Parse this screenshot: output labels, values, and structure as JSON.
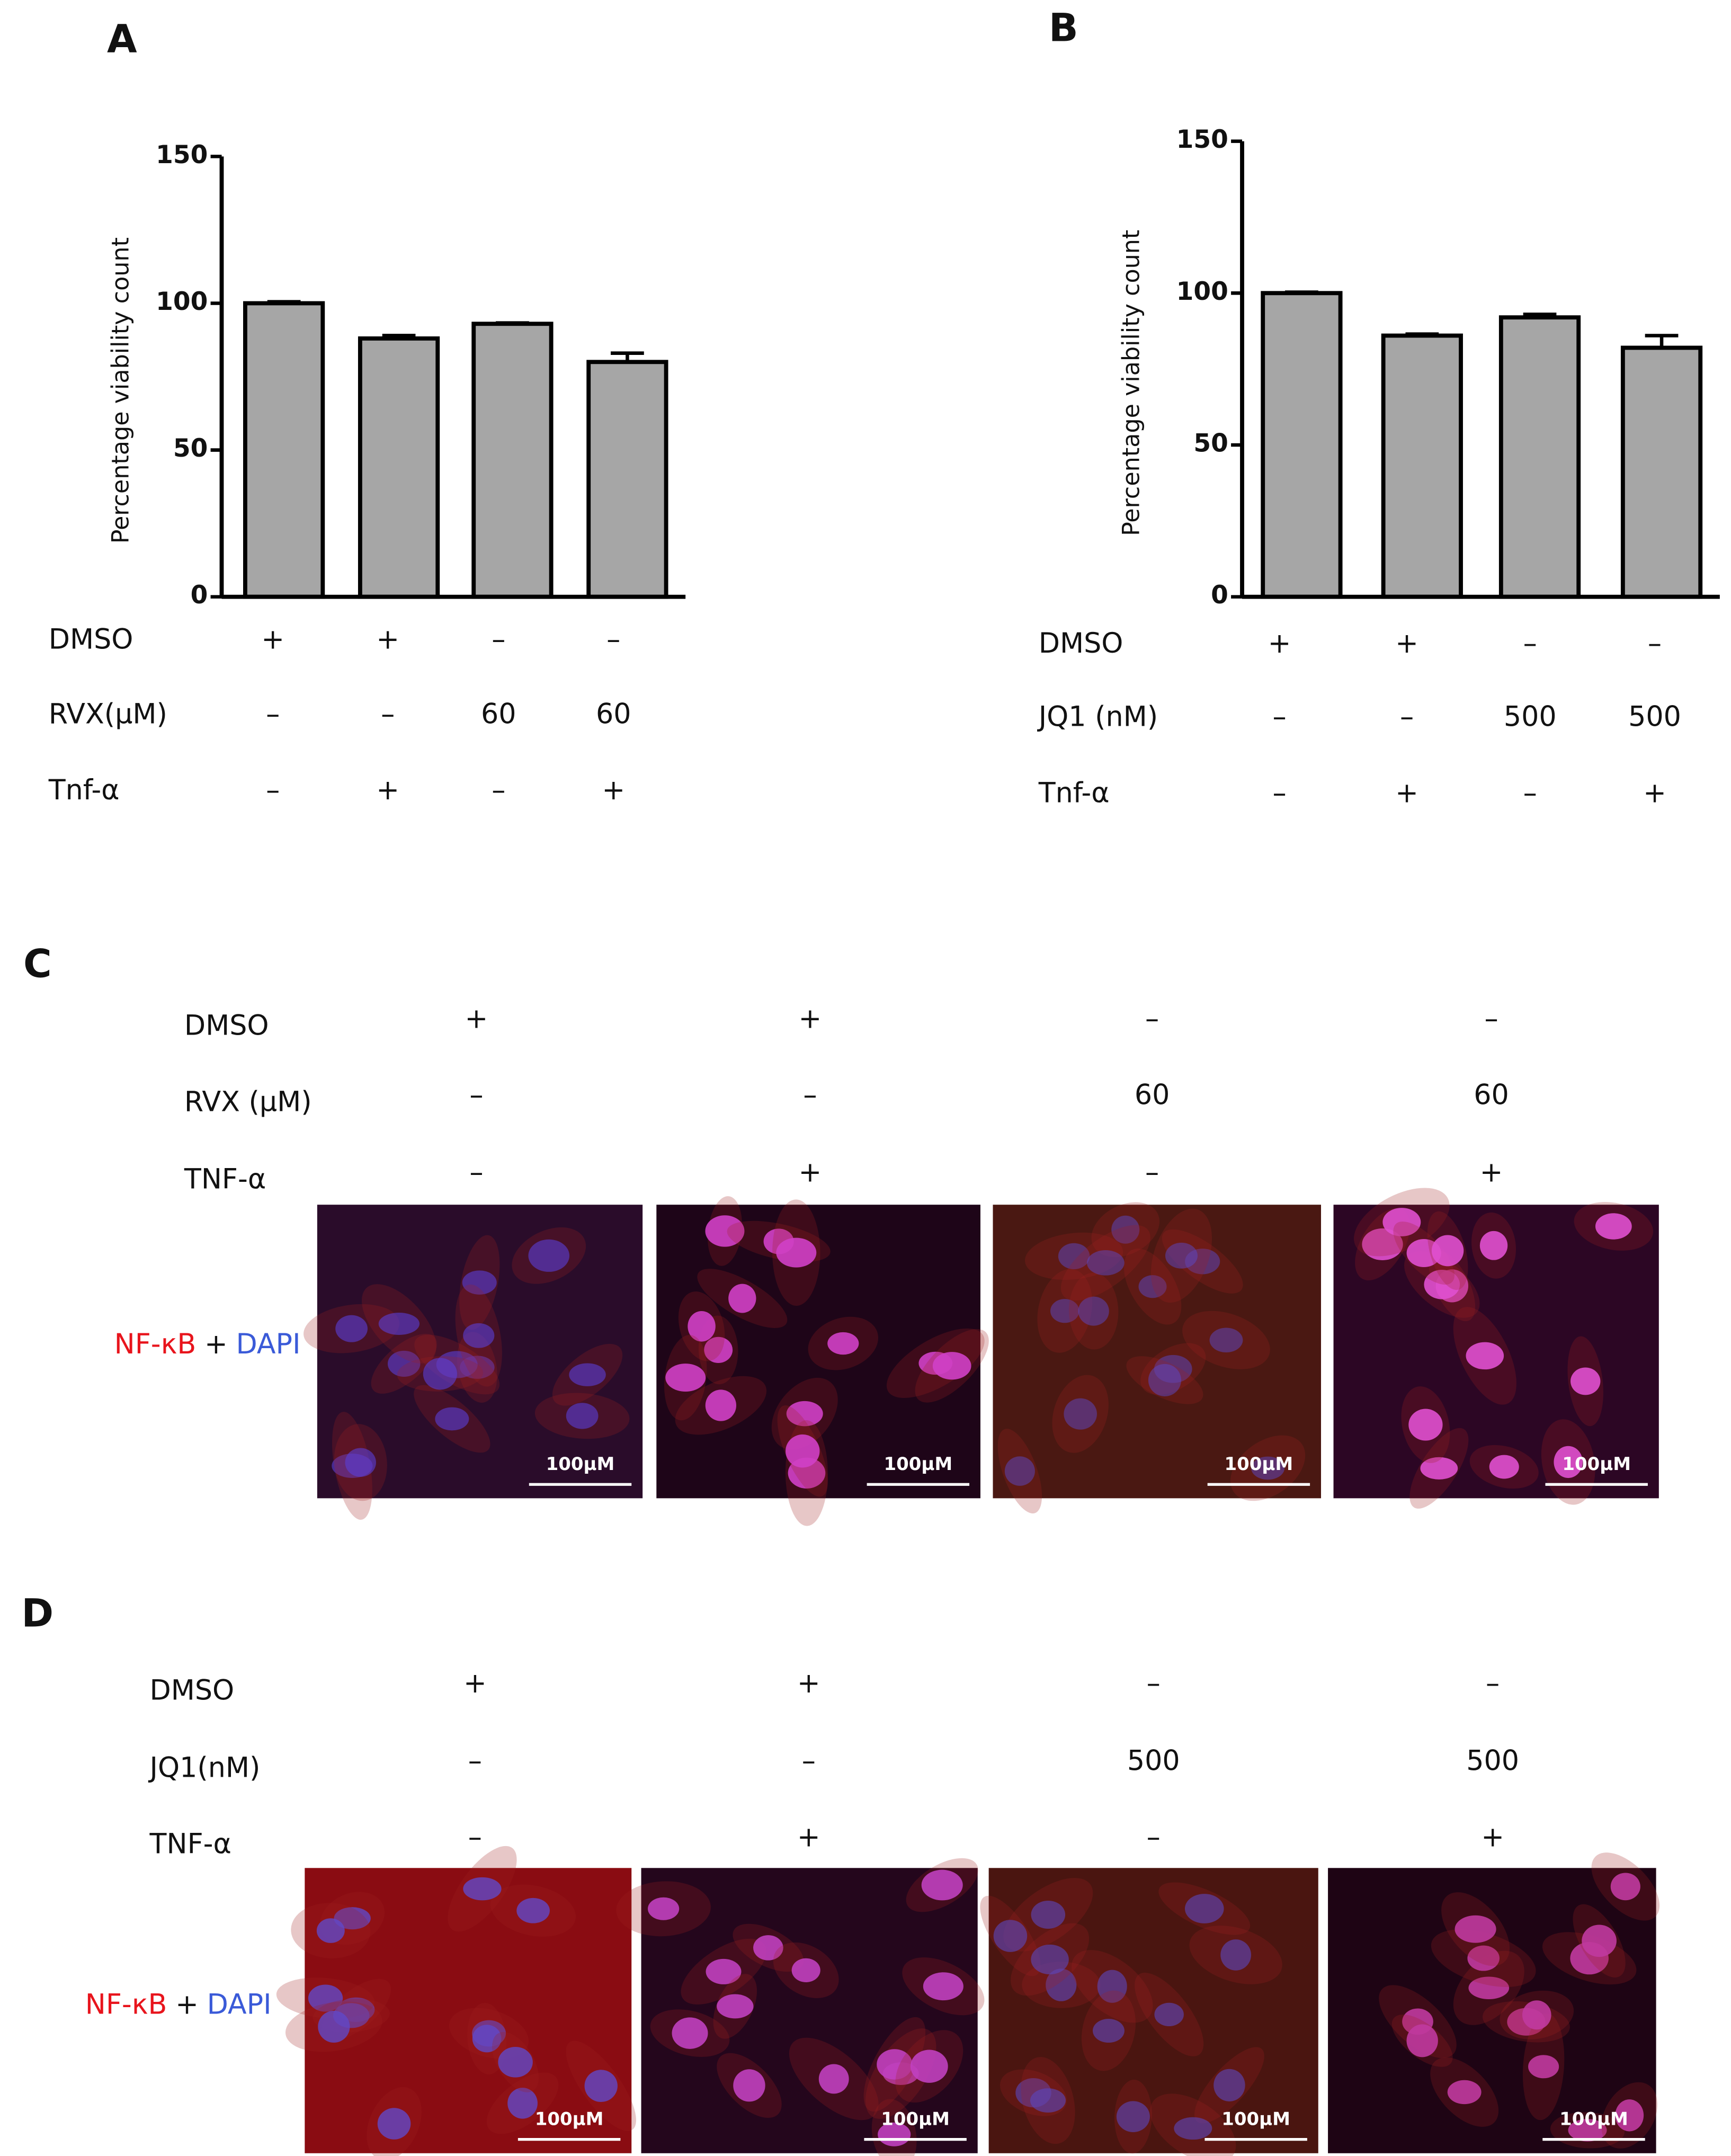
{
  "chart_data": [
    {
      "type": "bar",
      "panel": "A",
      "y_label": "Percentage viability count",
      "values": [
        100,
        88,
        93,
        80
      ],
      "errors": [
        0.5,
        1,
        0.3,
        3
      ],
      "color": "#a6a6a6",
      "ylim": [
        0,
        150
      ],
      "yticks": [
        0,
        50,
        100,
        150
      ],
      "treatments": [
        {
          "name": "DMSO",
          "levels": [
            "+",
            "+",
            "–",
            "–"
          ]
        },
        {
          "name": "RVX(μM)",
          "levels": [
            "–",
            "–",
            "60",
            "60"
          ]
        },
        {
          "name": "Tnf-α",
          "levels": [
            "–",
            "+",
            "–",
            "+"
          ]
        }
      ]
    },
    {
      "type": "bar",
      "panel": "B",
      "y_label": "Percentage viability count",
      "values": [
        100,
        86,
        92,
        82
      ],
      "errors": [
        0.3,
        0.5,
        1,
        4
      ],
      "color": "#a6a6a6",
      "ylim": [
        0,
        150
      ],
      "yticks": [
        0,
        50,
        100,
        150
      ],
      "treatments": [
        {
          "name": "DMSO",
          "levels": [
            "+",
            "+",
            "–",
            "–"
          ]
        },
        {
          "name": "JQ1 (nM)",
          "levels": [
            "–",
            "–",
            "500",
            "500"
          ]
        },
        {
          "name": "Tnf-α",
          "levels": [
            "–",
            "+",
            "–",
            "+"
          ]
        }
      ]
    }
  ],
  "panels": [
    {
      "label": "C",
      "treatments": [
        {
          "name": "DMSO",
          "levels": [
            "+",
            "+",
            "–",
            "–"
          ]
        },
        {
          "name": "RVX (μM)",
          "levels": [
            "–",
            "–",
            "60",
            "60"
          ]
        },
        {
          "name": "TNF-α",
          "levels": [
            "–",
            "+",
            "–",
            "+"
          ]
        }
      ],
      "stain": [
        "NF-κB",
        "+",
        "DAPI"
      ],
      "scale_bars": [
        "100μM",
        "100μM",
        "100μM",
        "100μM"
      ]
    },
    {
      "label": "D",
      "treatments": [
        {
          "name": "DMSO",
          "levels": [
            "+",
            "+",
            "–",
            "–"
          ]
        },
        {
          "name": "JQ1(nM)",
          "levels": [
            "–",
            "–",
            "500",
            "500"
          ]
        },
        {
          "name": "TNF-α",
          "levels": [
            "–",
            "+",
            "–",
            "+"
          ]
        }
      ],
      "stain": [
        "NF-κB",
        "+",
        "DAPI"
      ],
      "scale_bars": [
        "100μM",
        "100μM",
        "100μM",
        "100μM"
      ]
    }
  ]
}
